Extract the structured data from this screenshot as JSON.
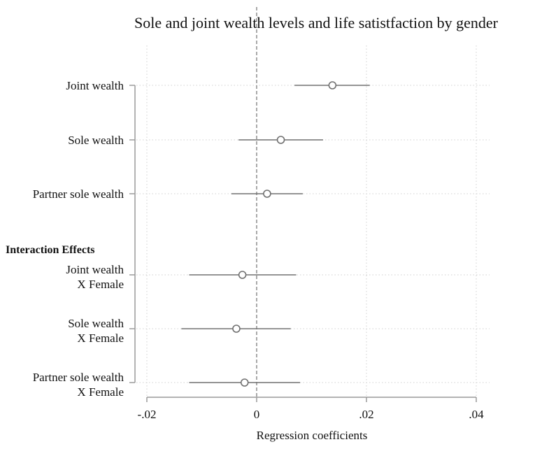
{
  "chart_data": {
    "type": "scatter",
    "title": "Sole and joint wealth levels and life satistfaction by gender",
    "xlabel": "Regression coefficients",
    "ylabel": "",
    "xlim": [
      -0.02,
      0.04
    ],
    "xticks": [
      -0.02,
      0,
      0.02,
      0.04
    ],
    "xtick_labels": [
      "-.02",
      "0",
      ".02",
      ".04"
    ],
    "reference_line": 0,
    "grid": true,
    "legend": "none",
    "group_header": "Interaction Effects",
    "series": [
      {
        "points": [
          {
            "label": [
              "Joint wealth"
            ],
            "estimate": 0.0138,
            "ci_low": 0.0069,
            "ci_high": 0.0206
          },
          {
            "label": [
              "Sole wealth"
            ],
            "estimate": 0.0044,
            "ci_low": -0.0033,
            "ci_high": 0.0121
          },
          {
            "label": [
              "Partner sole wealth"
            ],
            "estimate": 0.0019,
            "ci_low": -0.0046,
            "ci_high": 0.0084
          },
          {
            "label": [
              "Joint wealth",
              "X Female"
            ],
            "estimate": -0.0026,
            "ci_low": -0.0123,
            "ci_high": 0.0072
          },
          {
            "label": [
              "Sole wealth",
              "X Female"
            ],
            "estimate": -0.0037,
            "ci_low": -0.0137,
            "ci_high": 0.0062
          },
          {
            "label": [
              "Partner sole wealth",
              "X Female"
            ],
            "estimate": -0.0022,
            "ci_low": -0.0123,
            "ci_high": 0.0079
          }
        ]
      }
    ],
    "colors": {
      "marker": "#707070",
      "ci_line": "#707070",
      "axis": "#9a9a9a",
      "reference": "#707070",
      "grid": "#d0d0d0"
    }
  }
}
